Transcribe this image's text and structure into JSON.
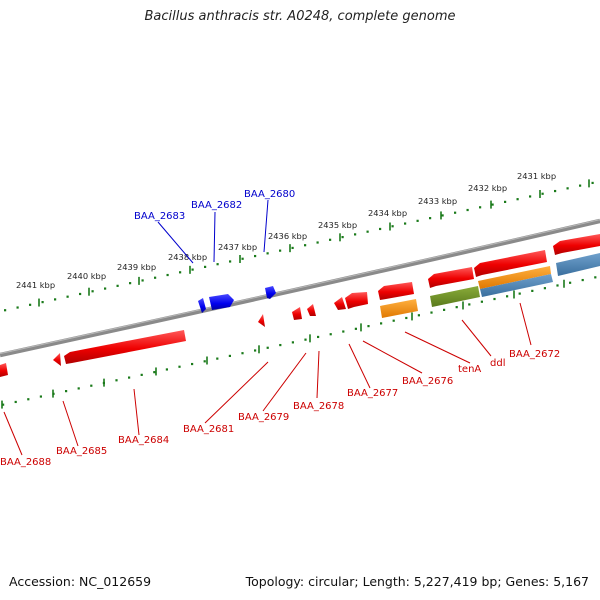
{
  "title": "Bacillus anthracis str. A0248, complete genome",
  "footer": {
    "accession": "Accession: NC_012659",
    "summary": "Topology: circular; Length: 5,227,419 bp; Genes: 5,167"
  },
  "ruler_labels": [
    "2431 kbp",
    "2432 kbp",
    "2433 kbp",
    "2434 kbp",
    "2435 kbp",
    "2436 kbp",
    "2437 kbp",
    "2438 kbp",
    "2439 kbp",
    "2440 kbp",
    "2441 kbp"
  ],
  "colors": {
    "plus_strand_gene": "#ff0000",
    "minus_strand_gene": "#0000ff",
    "plus_label": "#cc0000",
    "minus_label": "#0000cc",
    "backbone": "#808080",
    "tick": "#1a7a1a",
    "orange_feature": "#f08c00",
    "green_feature": "#6b8e23",
    "blue_feature": "#4682b4"
  },
  "genes": [
    {
      "name": "BAA_2680",
      "strand": "minus"
    },
    {
      "name": "BAA_2682",
      "strand": "minus"
    },
    {
      "name": "BAA_2683",
      "strand": "minus"
    },
    {
      "name": "BAA_2672",
      "strand": "plus"
    },
    {
      "name": "ddl",
      "strand": "plus"
    },
    {
      "name": "tenA",
      "strand": "plus"
    },
    {
      "name": "BAA_2676",
      "strand": "plus"
    },
    {
      "name": "BAA_2677",
      "strand": "plus"
    },
    {
      "name": "BAA_2678",
      "strand": "plus"
    },
    {
      "name": "BAA_2679",
      "strand": "plus"
    },
    {
      "name": "BAA_2681",
      "strand": "plus"
    },
    {
      "name": "BAA_2684",
      "strand": "plus"
    },
    {
      "name": "BAA_2685",
      "strand": "plus"
    },
    {
      "name": "BAA_2688",
      "strand": "plus"
    }
  ]
}
